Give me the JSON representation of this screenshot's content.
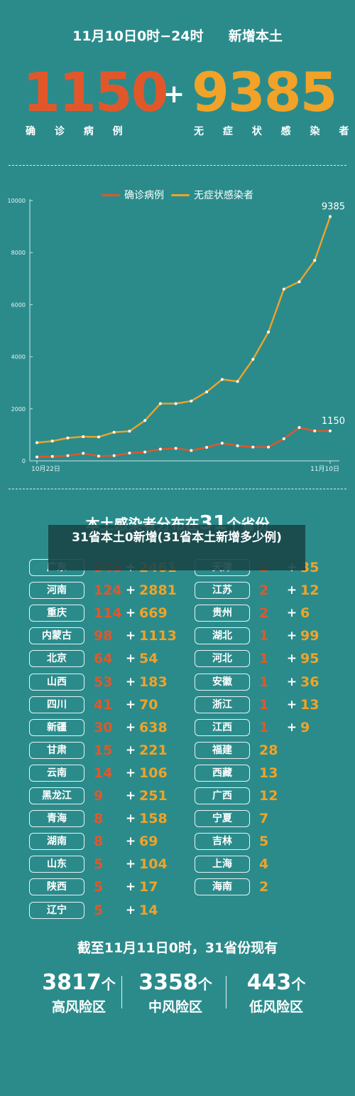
{
  "header": {
    "time_range": "11月10日0时−24时",
    "subtitle": "新增本土",
    "confirmed": "1150",
    "plus": "+",
    "asymptomatic": "9385",
    "confirmed_label": "确 诊 病 例",
    "asymptomatic_label": "无 症 状 感 染 者"
  },
  "colors": {
    "background": "#2b8b8b",
    "confirmed": "#e2572a",
    "asymptomatic": "#f0a328"
  },
  "chart_data": {
    "type": "line",
    "title": "",
    "xlabel": "",
    "ylabel": "",
    "x_tick_labels": [
      "10月22日",
      "11月10日"
    ],
    "x": [
      "10月22日",
      "10月23日",
      "10月24日",
      "10月25日",
      "10月26日",
      "10月27日",
      "10月28日",
      "10月29日",
      "10月30日",
      "10月31日",
      "11月1日",
      "11月2日",
      "11月3日",
      "11月4日",
      "11月5日",
      "11月6日",
      "11月7日",
      "11月8日",
      "11月9日",
      "11月10日"
    ],
    "y_ticks": [
      0,
      2000,
      4000,
      6000,
      8000,
      10000
    ],
    "ylim": [
      0,
      10000
    ],
    "legend_position": "top-center",
    "grid": false,
    "series": [
      {
        "name": "确诊病例",
        "color": "#e2572a",
        "values": [
          150,
          170,
          200,
          290,
          180,
          200,
          300,
          340,
          450,
          480,
          400,
          520,
          680,
          580,
          530,
          530,
          850,
          1280,
          1150,
          1150
        ],
        "end_label": "1150"
      },
      {
        "name": "无症状感染者",
        "color": "#f0a328",
        "values": [
          700,
          760,
          880,
          930,
          920,
          1100,
          1140,
          1550,
          2200,
          2200,
          2300,
          2650,
          3130,
          3050,
          3900,
          4950,
          6600,
          6880,
          7700,
          9385
        ],
        "end_label": "9385"
      }
    ]
  },
  "section_title": {
    "text_before": "本土感染者分布在",
    "number": "31",
    "text_after": "个省份"
  },
  "overlay_text": "31省本土0新增(31省本土新增多少例)",
  "provinces_left": [
    {
      "name": "广东",
      "confirmed": "546",
      "asymptomatic": "2461"
    },
    {
      "name": "河南",
      "confirmed": "124",
      "asymptomatic": "2881"
    },
    {
      "name": "重庆",
      "confirmed": "114",
      "asymptomatic": "669"
    },
    {
      "name": "内蒙古",
      "confirmed": "98",
      "asymptomatic": "1113"
    },
    {
      "name": "北京",
      "confirmed": "64",
      "asymptomatic": "54"
    },
    {
      "name": "山西",
      "confirmed": "53",
      "asymptomatic": "183"
    },
    {
      "name": "四川",
      "confirmed": "41",
      "asymptomatic": "70"
    },
    {
      "name": "新疆",
      "confirmed": "30",
      "asymptomatic": "638"
    },
    {
      "name": "甘肃",
      "confirmed": "15",
      "asymptomatic": "221"
    },
    {
      "name": "云南",
      "confirmed": "14",
      "asymptomatic": "106"
    },
    {
      "name": "黑龙江",
      "confirmed": "9",
      "asymptomatic": "251"
    },
    {
      "name": "青海",
      "confirmed": "8",
      "asymptomatic": "158"
    },
    {
      "name": "湖南",
      "confirmed": "8",
      "asymptomatic": "69"
    },
    {
      "name": "山东",
      "confirmed": "5",
      "asymptomatic": "104"
    },
    {
      "name": "陕西",
      "confirmed": "5",
      "asymptomatic": "17"
    },
    {
      "name": "辽宁",
      "confirmed": "5",
      "asymptomatic": "14"
    }
  ],
  "provinces_right": [
    {
      "name": "天津",
      "confirmed": "2",
      "asymptomatic": "35"
    },
    {
      "name": "江苏",
      "confirmed": "2",
      "asymptomatic": "12"
    },
    {
      "name": "贵州",
      "confirmed": "2",
      "asymptomatic": "6"
    },
    {
      "name": "湖北",
      "confirmed": "1",
      "asymptomatic": "99"
    },
    {
      "name": "河北",
      "confirmed": "1",
      "asymptomatic": "95"
    },
    {
      "name": "安徽",
      "confirmed": "1",
      "asymptomatic": "36"
    },
    {
      "name": "浙江",
      "confirmed": "1",
      "asymptomatic": "13"
    },
    {
      "name": "江西",
      "confirmed": "1",
      "asymptomatic": "9"
    },
    {
      "name": "福建",
      "confirmed": "",
      "asymptomatic": "28"
    },
    {
      "name": "西藏",
      "confirmed": "",
      "asymptomatic": "13"
    },
    {
      "name": "广西",
      "confirmed": "",
      "asymptomatic": "12"
    },
    {
      "name": "宁夏",
      "confirmed": "",
      "asymptomatic": "7"
    },
    {
      "name": "吉林",
      "confirmed": "",
      "asymptomatic": "5"
    },
    {
      "name": "上海",
      "confirmed": "",
      "asymptomatic": "4"
    },
    {
      "name": "海南",
      "confirmed": "",
      "asymptomatic": "2"
    }
  ],
  "footer": {
    "title": "截至11月11日0时，31省份现有",
    "unit": "个",
    "risk_areas": [
      {
        "count": "3817",
        "label": "高风险区"
      },
      {
        "count": "3358",
        "label": "中风险区"
      },
      {
        "count": "443",
        "label": "低风险区"
      }
    ]
  }
}
